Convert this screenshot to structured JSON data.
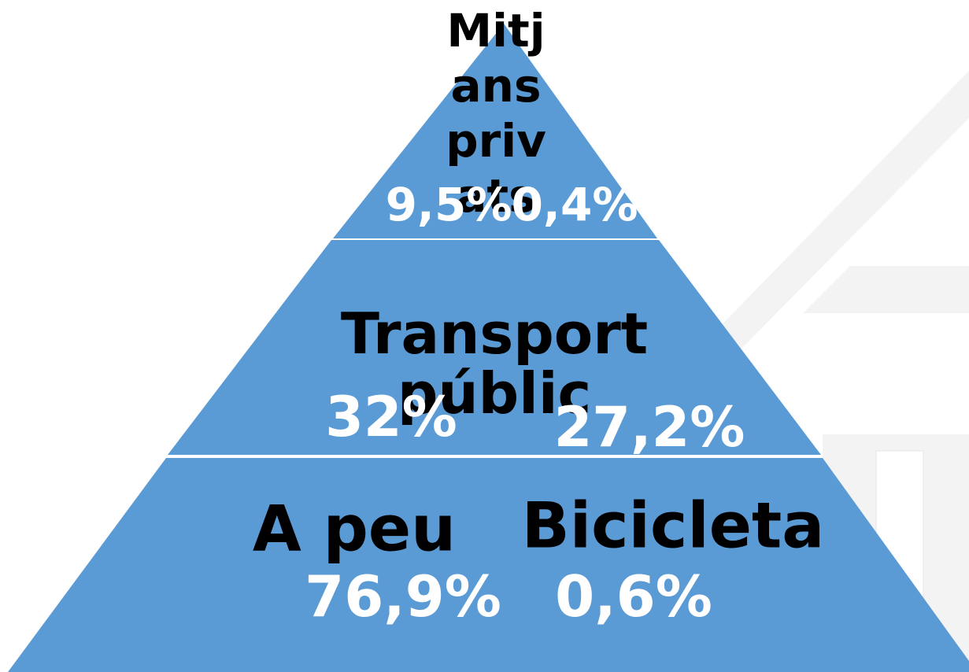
{
  "tiers": [
    {
      "label": "Mitjans privats",
      "values": [
        "9,5%",
        "0,4%"
      ]
    },
    {
      "label": "Transport públic",
      "values": [
        "32%",
        "27,2%"
      ]
    },
    {
      "labels": [
        "A peu",
        "Bicicleta"
      ],
      "values": [
        "76,9%",
        "0,6%"
      ]
    }
  ]
}
